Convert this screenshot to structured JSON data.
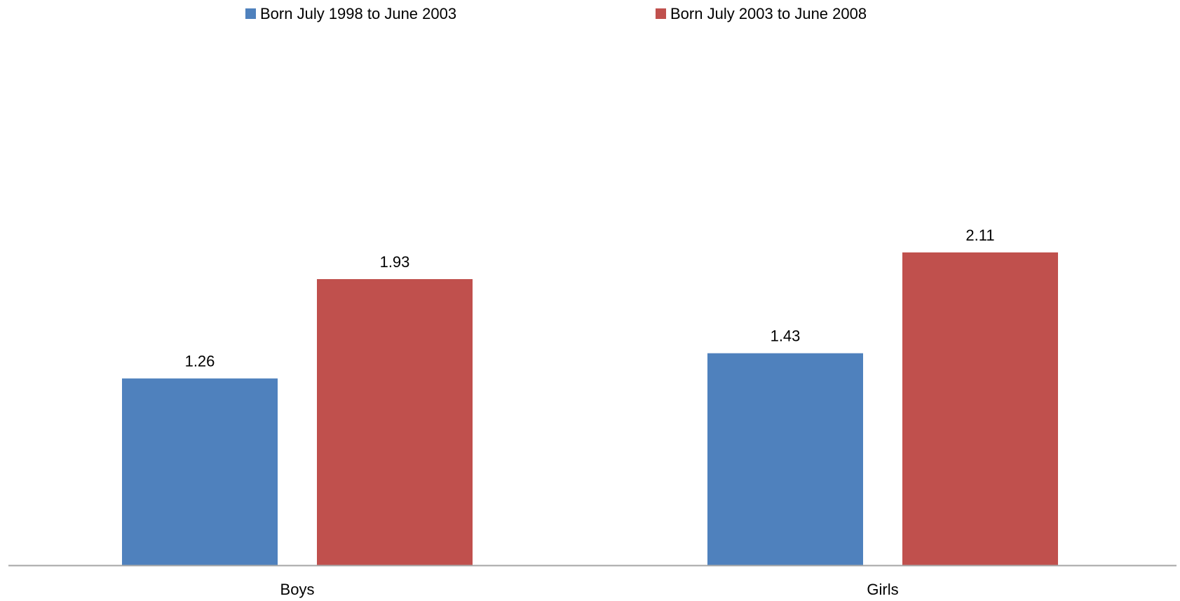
{
  "chart_data": {
    "type": "bar",
    "title": "",
    "xlabel": "",
    "ylabel": "",
    "categories": [
      "Boys",
      "Girls"
    ],
    "series": [
      {
        "name": "Born July 1998 to June 2003",
        "color": "#4F81BD",
        "values": [
          1.26,
          1.43
        ],
        "labels": [
          "1.26",
          "1.43"
        ]
      },
      {
        "name": "Born July 2003 to June 2008",
        "color": "#C0504D",
        "values": [
          1.93,
          2.11
        ],
        "labels": [
          "1.93",
          "2.11"
        ]
      }
    ],
    "ylim": [
      0,
      2.3
    ],
    "grid": false,
    "y_axis_visible": false,
    "legend_position": "top",
    "axis_color": "#A6A6A6"
  }
}
